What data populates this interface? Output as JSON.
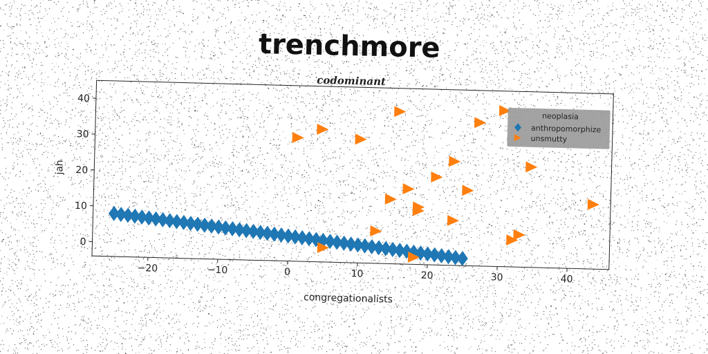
{
  "chart_data": {
    "type": "scatter",
    "title": "trenchmore",
    "subtitle": "codominant",
    "xlabel": "congregationalists",
    "ylabel": "jah",
    "xlim": [
      -28,
      46
    ],
    "ylim": [
      -4,
      45
    ],
    "xticks": [
      -20,
      -10,
      0,
      10,
      20,
      30,
      40
    ],
    "yticks": [
      0,
      10,
      20,
      30,
      40
    ],
    "grid": false,
    "legend": {
      "title": "neoplasia",
      "placement": "top-right"
    },
    "colors": {
      "anthropomorphize": "#1f77b4",
      "unsmutty": "#ff7f0e"
    },
    "series": [
      {
        "name": "anthropomorphize",
        "marker": "diamond",
        "x": [
          -25,
          -24,
          -23,
          -22,
          -21,
          -20,
          -19,
          -18,
          -17,
          -16,
          -15,
          -14,
          -13,
          -12,
          -11,
          -10,
          -9,
          -8,
          -7,
          -6,
          -5,
          -4,
          -3,
          -2,
          -1,
          0,
          1,
          2,
          3,
          4,
          5,
          6,
          7,
          8,
          9,
          10,
          11,
          12,
          13,
          14,
          15,
          16,
          17,
          18,
          19,
          20,
          21,
          22,
          23,
          24,
          25
        ],
        "y": [
          8.0,
          7.8,
          7.6,
          7.4,
          7.2,
          7.0,
          6.8,
          6.6,
          6.4,
          6.2,
          6.0,
          5.8,
          5.6,
          5.4,
          5.2,
          5.0,
          4.8,
          4.6,
          4.4,
          4.2,
          4.0,
          3.8,
          3.6,
          3.4,
          3.2,
          3.0,
          2.8,
          2.6,
          2.4,
          2.2,
          2.0,
          1.8,
          1.6,
          1.4,
          1.2,
          1.0,
          0.8,
          0.6,
          0.4,
          0.2,
          0.0,
          -0.2,
          -0.4,
          -0.6,
          -0.8,
          -1.0,
          -1.2,
          -1.4,
          -1.6,
          -1.8,
          -2.0
        ]
      },
      {
        "name": "unsmutty",
        "marker": "triangle-right",
        "x": [
          1,
          4.5,
          10,
          15.5,
          27,
          30.5,
          23.5,
          21,
          34.5,
          17,
          25.5,
          14.5,
          18.5,
          18.5,
          23.5,
          12.5,
          33,
          32,
          43.5,
          5,
          18
        ],
        "y": [
          30.5,
          33,
          30.5,
          38.5,
          36,
          39.5,
          25,
          20.5,
          24,
          17,
          17,
          14,
          12,
          11,
          8.5,
          5,
          5,
          3.5,
          14,
          0,
          -2
        ]
      }
    ]
  }
}
